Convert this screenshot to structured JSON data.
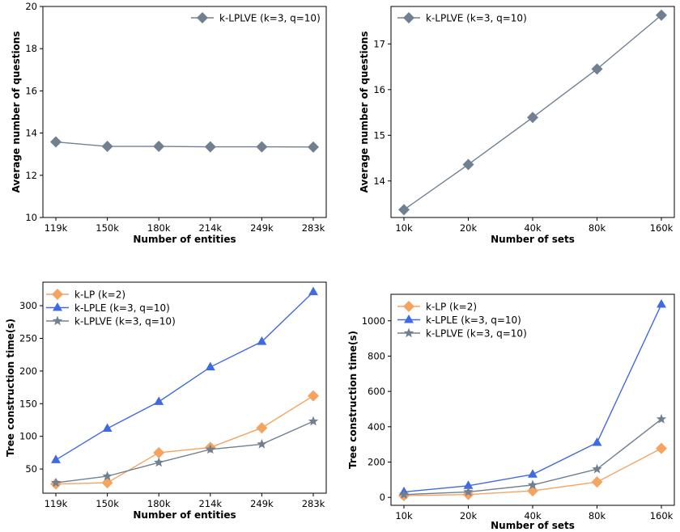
{
  "chart_data": [
    {
      "type": "line",
      "xlabel": "Number of entities",
      "ylabel": "Average number of questions",
      "categories": [
        "119k",
        "150k",
        "180k",
        "214k",
        "249k",
        "283k"
      ],
      "ylim": [
        10,
        20
      ],
      "yticks": [
        10,
        12,
        14,
        16,
        18,
        20
      ],
      "legend_position": "top-right",
      "series": [
        {
          "name": "k-LPLVE (k=3, q=10)",
          "marker": "diamond",
          "color": "#708090",
          "values": [
            13.58,
            13.37,
            13.37,
            13.35,
            13.35,
            13.34
          ]
        }
      ]
    },
    {
      "type": "line",
      "xlabel": "Number of sets",
      "ylabel": "Average number of questions",
      "categories": [
        "10k",
        "20k",
        "40k",
        "80k",
        "160k"
      ],
      "ylim": [
        13.2,
        17.82
      ],
      "yticks": [
        14,
        15,
        16,
        17
      ],
      "legend_position": "top-left",
      "series": [
        {
          "name": "k-LPLVE (k=3, q=10)",
          "marker": "diamond",
          "color": "#708090",
          "values": [
            13.37,
            14.36,
            15.39,
            16.45,
            17.63
          ]
        }
      ]
    },
    {
      "type": "line",
      "xlabel": "Number of entities",
      "ylabel": "Tree construction time(s)",
      "categories": [
        "119k",
        "150k",
        "180k",
        "214k",
        "249k",
        "283k"
      ],
      "ylim": [
        13,
        336
      ],
      "yticks": [
        50,
        100,
        150,
        200,
        250,
        300
      ],
      "legend_position": "top-left",
      "series": [
        {
          "name": "k-LP (k=2)",
          "marker": "diamond",
          "color": "#f4a460",
          "values": [
            27,
            29,
            75,
            83,
            113,
            162
          ]
        },
        {
          "name": "k-LPLE (k=3, q=10)",
          "marker": "triangle",
          "color": "#4169e1",
          "values": [
            64,
            112,
            153,
            206,
            245,
            321
          ]
        },
        {
          "name": "k-LPLVE (k=3, q=10)",
          "marker": "star",
          "color": "#708090",
          "values": [
            29,
            39,
            60,
            80,
            88,
            123
          ]
        }
      ]
    },
    {
      "type": "line",
      "xlabel": "Number of sets",
      "ylabel": "Tree construction time(s)",
      "categories": [
        "10k",
        "20k",
        "40k",
        "80k",
        "160k"
      ],
      "ylim": [
        -45,
        1150
      ],
      "yticks": [
        0,
        200,
        400,
        600,
        800,
        1000
      ],
      "legend_position": "top-left",
      "series": [
        {
          "name": "k-LP (k=2)",
          "marker": "diamond",
          "color": "#f4a460",
          "values": [
            10,
            16,
            37,
            87,
            277
          ]
        },
        {
          "name": "k-LPLE (k=3, q=10)",
          "marker": "triangle",
          "color": "#4169e1",
          "values": [
            31,
            66,
            130,
            310,
            1093
          ]
        },
        {
          "name": "k-LPLVE (k=3, q=10)",
          "marker": "star",
          "color": "#708090",
          "values": [
            16,
            31,
            70,
            160,
            443
          ]
        }
      ]
    }
  ]
}
